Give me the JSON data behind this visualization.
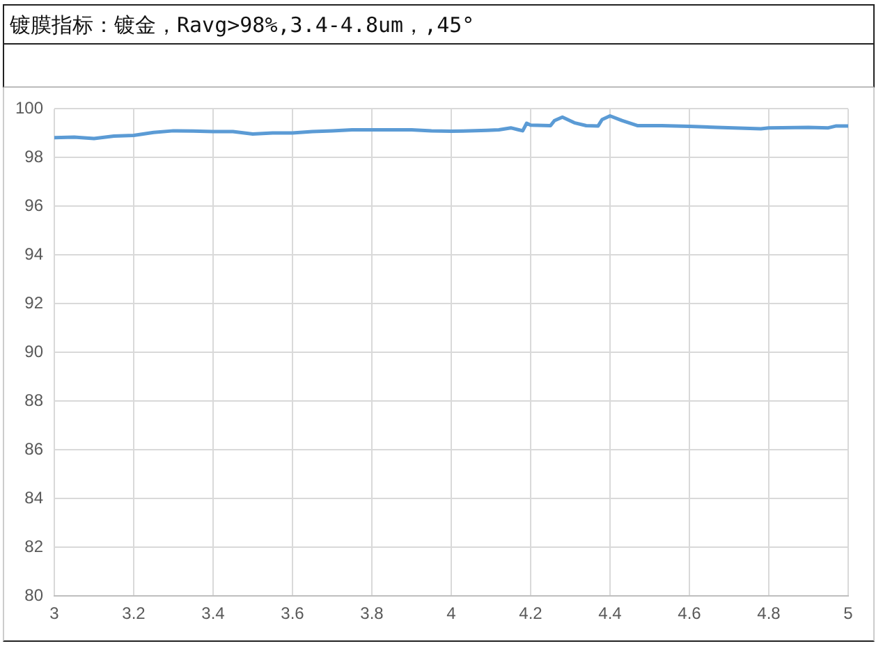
{
  "chart_data": {
    "type": "line",
    "title": "镀膜指标：镀金，Ravg>98%,3.4-4.8um，,45°",
    "x": [
      3,
      3.05,
      3.1,
      3.15,
      3.2,
      3.25,
      3.3,
      3.35,
      3.4,
      3.45,
      3.5,
      3.55,
      3.6,
      3.65,
      3.7,
      3.75,
      3.8,
      3.85,
      3.9,
      3.95,
      4,
      4.03,
      4.09,
      4.12,
      4.15,
      4.17,
      4.18,
      4.19,
      4.2,
      4.25,
      4.26,
      4.28,
      4.31,
      4.34,
      4.37,
      4.38,
      4.4,
      4.43,
      4.47,
      4.53,
      4.6,
      4.67,
      4.78,
      4.8,
      4.9,
      4.95,
      4.97,
      5
    ],
    "series": [
      {
        "color": "#5b9bd5",
        "values": [
          98.82,
          98.84,
          98.78,
          98.88,
          98.91,
          99.03,
          99.1,
          99.09,
          99.07,
          99.07,
          98.97,
          99.01,
          99.01,
          99.07,
          99.1,
          99.14,
          99.14,
          99.14,
          99.14,
          99.1,
          99.08,
          99.09,
          99.12,
          99.14,
          99.22,
          99.14,
          99.1,
          99.41,
          99.33,
          99.31,
          99.52,
          99.66,
          99.43,
          99.31,
          99.3,
          99.56,
          99.71,
          99.52,
          99.31,
          99.31,
          99.28,
          99.24,
          99.18,
          99.22,
          99.24,
          99.22,
          99.3,
          99.3
        ]
      }
    ],
    "xlim": [
      3,
      5
    ],
    "xticks": [
      3,
      3.2,
      3.4,
      3.6,
      3.8,
      4,
      4.2,
      4.4,
      4.6,
      4.8,
      5
    ],
    "ylim": [
      80,
      100
    ],
    "yticks": [
      80,
      82,
      84,
      86,
      88,
      90,
      92,
      94,
      96,
      98,
      100
    ],
    "grid": true
  }
}
